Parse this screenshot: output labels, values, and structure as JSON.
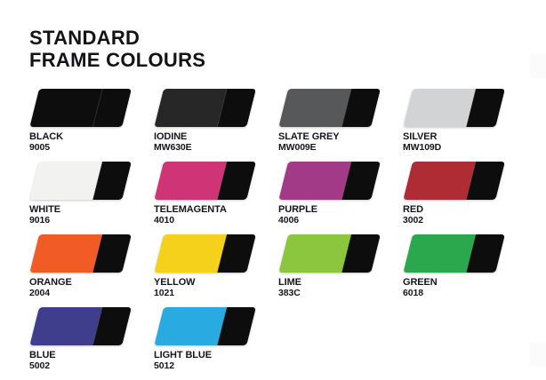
{
  "title": {
    "line1": "STANDARD",
    "line2": "FRAME COLOURS"
  },
  "accent_black": "#0d0d0d",
  "edge_artifact_color": "#fbfbfb",
  "swatches": [
    {
      "name": "BLACK",
      "code": "9005",
      "color": "#0d0d0d"
    },
    {
      "name": "IODINE",
      "code": "MW630E",
      "color": "#272728"
    },
    {
      "name": "SLATE GREY",
      "code": "MW009E",
      "color": "#57585a"
    },
    {
      "name": "SILVER",
      "code": "MW109D",
      "color": "#d1d3d4"
    },
    {
      "name": "WHITE",
      "code": "9016",
      "color": "#f2f2f0"
    },
    {
      "name": "TELEMAGENTA",
      "code": "4010",
      "color": "#cf3476"
    },
    {
      "name": "PURPLE",
      "code": "4006",
      "color": "#a23a88"
    },
    {
      "name": "RED",
      "code": "3002",
      "color": "#b02c34"
    },
    {
      "name": "ORANGE",
      "code": "2004",
      "color": "#f15b26"
    },
    {
      "name": "YELLOW",
      "code": "1021",
      "color": "#f6d11c"
    },
    {
      "name": "LIME",
      "code": "383C",
      "color": "#8cc63f"
    },
    {
      "name": "GREEN",
      "code": "6018",
      "color": "#2ba84e"
    },
    {
      "name": "BLUE",
      "code": "5002",
      "color": "#3e3e8d"
    },
    {
      "name": "LIGHT BLUE",
      "code": "5012",
      "color": "#29abe2"
    }
  ]
}
